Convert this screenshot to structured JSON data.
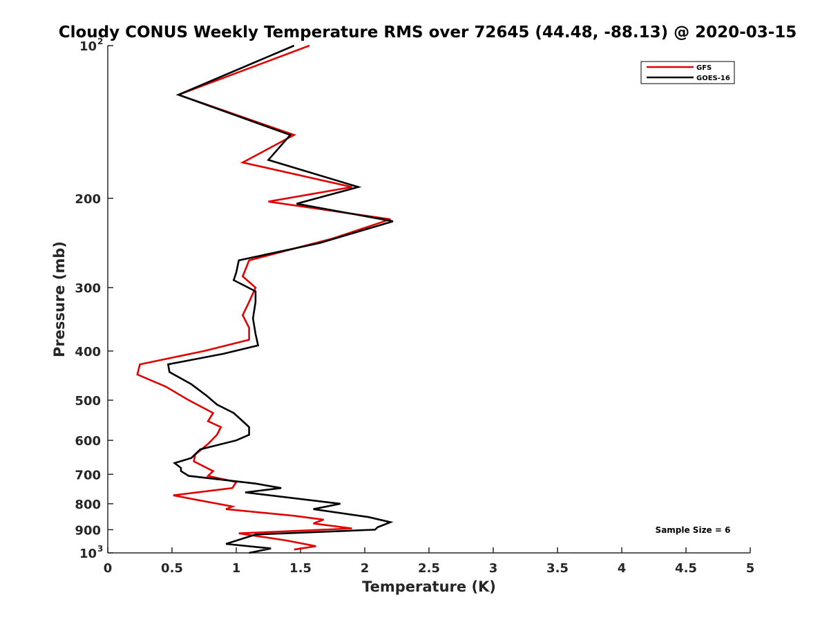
{
  "chart_data": {
    "type": "line",
    "title": "Cloudy CONUS Weekly Temperature RMS over 72645 (44.48, -88.13) @ 2020-03-15",
    "xlabel": "Temperature (K)",
    "ylabel": "Pressure (mb)",
    "xlim": [
      0,
      5
    ],
    "ylim": [
      1000,
      100
    ],
    "yscale": "log",
    "y_reversed": true,
    "grid": false,
    "legend_position": "top-right",
    "xticks": [
      {
        "value": 0,
        "label": "0"
      },
      {
        "value": 0.5,
        "label": "0.5"
      },
      {
        "value": 1,
        "label": "1"
      },
      {
        "value": 1.5,
        "label": "1.5"
      },
      {
        "value": 2,
        "label": "2"
      },
      {
        "value": 2.5,
        "label": "2.5"
      },
      {
        "value": 3,
        "label": "3"
      },
      {
        "value": 3.5,
        "label": "3.5"
      },
      {
        "value": 4,
        "label": "4"
      },
      {
        "value": 4.5,
        "label": "4.5"
      },
      {
        "value": 5,
        "label": "5"
      }
    ],
    "yticks": [
      {
        "value": 100,
        "base": "10",
        "exp": "2"
      },
      {
        "value": 200,
        "label": "200"
      },
      {
        "value": 300,
        "label": "300"
      },
      {
        "value": 400,
        "label": "400"
      },
      {
        "value": 500,
        "label": "500"
      },
      {
        "value": 600,
        "label": "600"
      },
      {
        "value": 700,
        "label": "700"
      },
      {
        "value": 800,
        "label": "800"
      },
      {
        "value": 900,
        "label": "900"
      },
      {
        "value": 1000,
        "base": "10",
        "exp": "3"
      }
    ],
    "annotation": "Sample Size = 6",
    "series": [
      {
        "name": "GFS",
        "color": "#e00000",
        "points": [
          [
            1.57,
            100
          ],
          [
            0.55,
            125
          ],
          [
            1.45,
            150
          ],
          [
            1.05,
            170
          ],
          [
            1.9,
            190
          ],
          [
            1.25,
            203
          ],
          [
            2.2,
            220
          ],
          [
            1.75,
            240
          ],
          [
            1.1,
            265
          ],
          [
            1.05,
            285
          ],
          [
            1.15,
            300
          ],
          [
            1.1,
            320
          ],
          [
            1.05,
            340
          ],
          [
            1.1,
            360
          ],
          [
            1.1,
            380
          ],
          [
            0.75,
            400
          ],
          [
            0.25,
            425
          ],
          [
            0.23,
            445
          ],
          [
            0.45,
            470
          ],
          [
            0.63,
            500
          ],
          [
            0.82,
            530
          ],
          [
            0.78,
            550
          ],
          [
            0.88,
            565
          ],
          [
            0.85,
            585
          ],
          [
            0.78,
            610
          ],
          [
            0.68,
            640
          ],
          [
            0.67,
            660
          ],
          [
            0.82,
            690
          ],
          [
            0.78,
            705
          ],
          [
            1.0,
            725
          ],
          [
            0.97,
            745
          ],
          [
            0.51,
            770
          ],
          [
            0.68,
            785
          ],
          [
            0.97,
            810
          ],
          [
            0.92,
            820
          ],
          [
            1.45,
            845
          ],
          [
            1.68,
            860
          ],
          [
            1.6,
            875
          ],
          [
            1.9,
            895
          ],
          [
            1.02,
            915
          ],
          [
            1.39,
            945
          ],
          [
            1.62,
            970
          ],
          [
            1.45,
            985
          ]
        ]
      },
      {
        "name": "GOES-16",
        "color": "#000000",
        "points": [
          [
            1.45,
            100
          ],
          [
            0.55,
            125
          ],
          [
            1.42,
            150
          ],
          [
            1.25,
            168
          ],
          [
            1.95,
            190
          ],
          [
            1.47,
            205
          ],
          [
            2.22,
            222
          ],
          [
            1.65,
            245
          ],
          [
            1.02,
            265
          ],
          [
            1.0,
            280
          ],
          [
            0.98,
            290
          ],
          [
            1.15,
            305
          ],
          [
            1.15,
            320
          ],
          [
            1.13,
            345
          ],
          [
            1.15,
            370
          ],
          [
            1.17,
            390
          ],
          [
            0.9,
            405
          ],
          [
            0.47,
            425
          ],
          [
            0.48,
            440
          ],
          [
            0.65,
            465
          ],
          [
            0.77,
            490
          ],
          [
            0.85,
            510
          ],
          [
            0.98,
            530
          ],
          [
            1.05,
            550
          ],
          [
            1.1,
            565
          ],
          [
            1.1,
            585
          ],
          [
            1.0,
            600
          ],
          [
            0.72,
            625
          ],
          [
            0.65,
            650
          ],
          [
            0.52,
            665
          ],
          [
            0.57,
            680
          ],
          [
            0.57,
            690
          ],
          [
            0.63,
            705
          ],
          [
            1.15,
            730
          ],
          [
            1.35,
            745
          ],
          [
            1.07,
            760
          ],
          [
            1.81,
            800
          ],
          [
            1.6,
            820
          ],
          [
            2.03,
            850
          ],
          [
            2.2,
            870
          ],
          [
            2.1,
            890
          ],
          [
            2.08,
            900
          ],
          [
            1.15,
            920
          ],
          [
            0.92,
            960
          ],
          [
            1.27,
            980
          ],
          [
            1.1,
            1000
          ]
        ]
      }
    ]
  }
}
